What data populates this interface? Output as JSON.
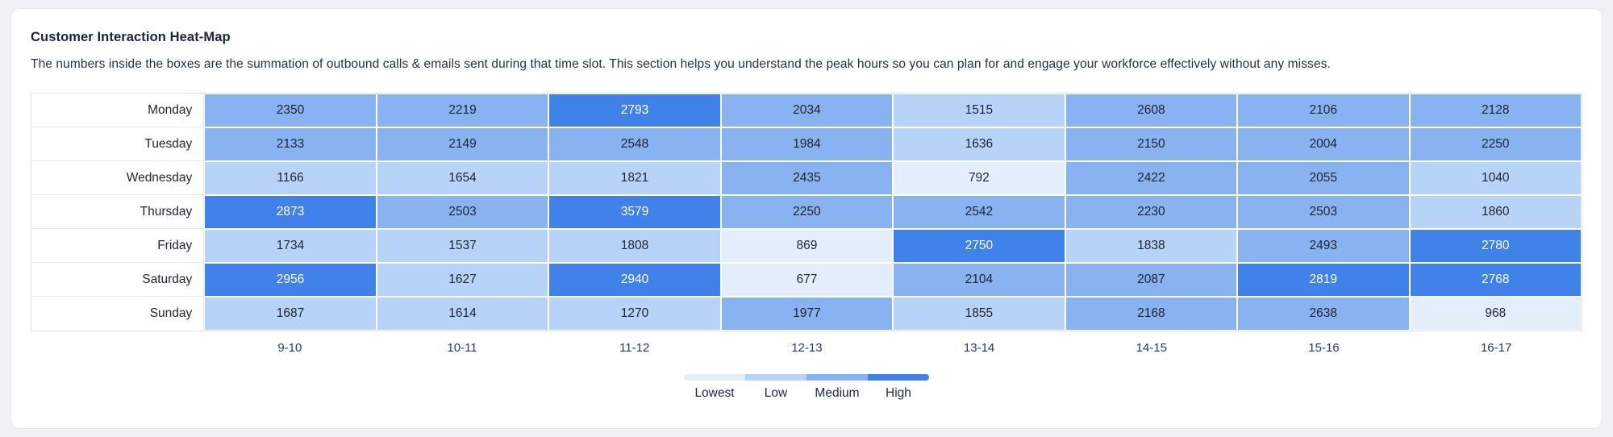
{
  "card": {
    "title": "Customer Interaction Heat-Map",
    "description": "The numbers inside the boxes are the summation of outbound calls & emails sent during that time slot. This section helps you understand the peak hours so you can plan for and engage your workforce effectively without any misses."
  },
  "palette": {
    "lowest": "#e4eefb",
    "low": "#b7d3f8",
    "medium": "#89b2f1",
    "high": "#4181ea"
  },
  "chart_data": {
    "type": "heatmap",
    "title": "Customer Interaction Heat-Map",
    "rows": [
      "Monday",
      "Tuesday",
      "Wednesday",
      "Thursday",
      "Friday",
      "Saturday",
      "Sunday"
    ],
    "columns": [
      "9-10",
      "10-11",
      "11-12",
      "12-13",
      "13-14",
      "14-15",
      "15-16",
      "16-17"
    ],
    "values": [
      [
        2350,
        2219,
        2793,
        2034,
        1515,
        2608,
        2106,
        2128
      ],
      [
        2133,
        2149,
        2548,
        1984,
        1636,
        2150,
        2004,
        2250
      ],
      [
        1166,
        1654,
        1821,
        2435,
        792,
        2422,
        2055,
        1040
      ],
      [
        2873,
        2503,
        3579,
        2250,
        2542,
        2230,
        2503,
        1860
      ],
      [
        1734,
        1537,
        1808,
        869,
        2750,
        1838,
        2493,
        2780
      ],
      [
        2956,
        1627,
        2940,
        677,
        2104,
        2087,
        2819,
        2768
      ],
      [
        1687,
        1614,
        1270,
        1977,
        1855,
        2168,
        2638,
        968
      ]
    ],
    "levels": [
      [
        "medium",
        "medium",
        "high",
        "medium",
        "low",
        "medium",
        "medium",
        "medium"
      ],
      [
        "medium",
        "medium",
        "medium",
        "medium",
        "low",
        "medium",
        "medium",
        "medium"
      ],
      [
        "low",
        "low",
        "low",
        "medium",
        "lowest",
        "medium",
        "medium",
        "low"
      ],
      [
        "high",
        "medium",
        "high",
        "medium",
        "medium",
        "medium",
        "medium",
        "low"
      ],
      [
        "low",
        "low",
        "low",
        "lowest",
        "high",
        "low",
        "medium",
        "high"
      ],
      [
        "high",
        "low",
        "high",
        "lowest",
        "medium",
        "medium",
        "high",
        "high"
      ],
      [
        "low",
        "low",
        "low",
        "medium",
        "low",
        "medium",
        "medium",
        "lowest"
      ]
    ],
    "legend": [
      {
        "label": "Lowest",
        "level": "lowest"
      },
      {
        "label": "Low",
        "level": "low"
      },
      {
        "label": "Medium",
        "level": "medium"
      },
      {
        "label": "High",
        "level": "high"
      }
    ],
    "legend_position": "bottom",
    "grid": false
  }
}
